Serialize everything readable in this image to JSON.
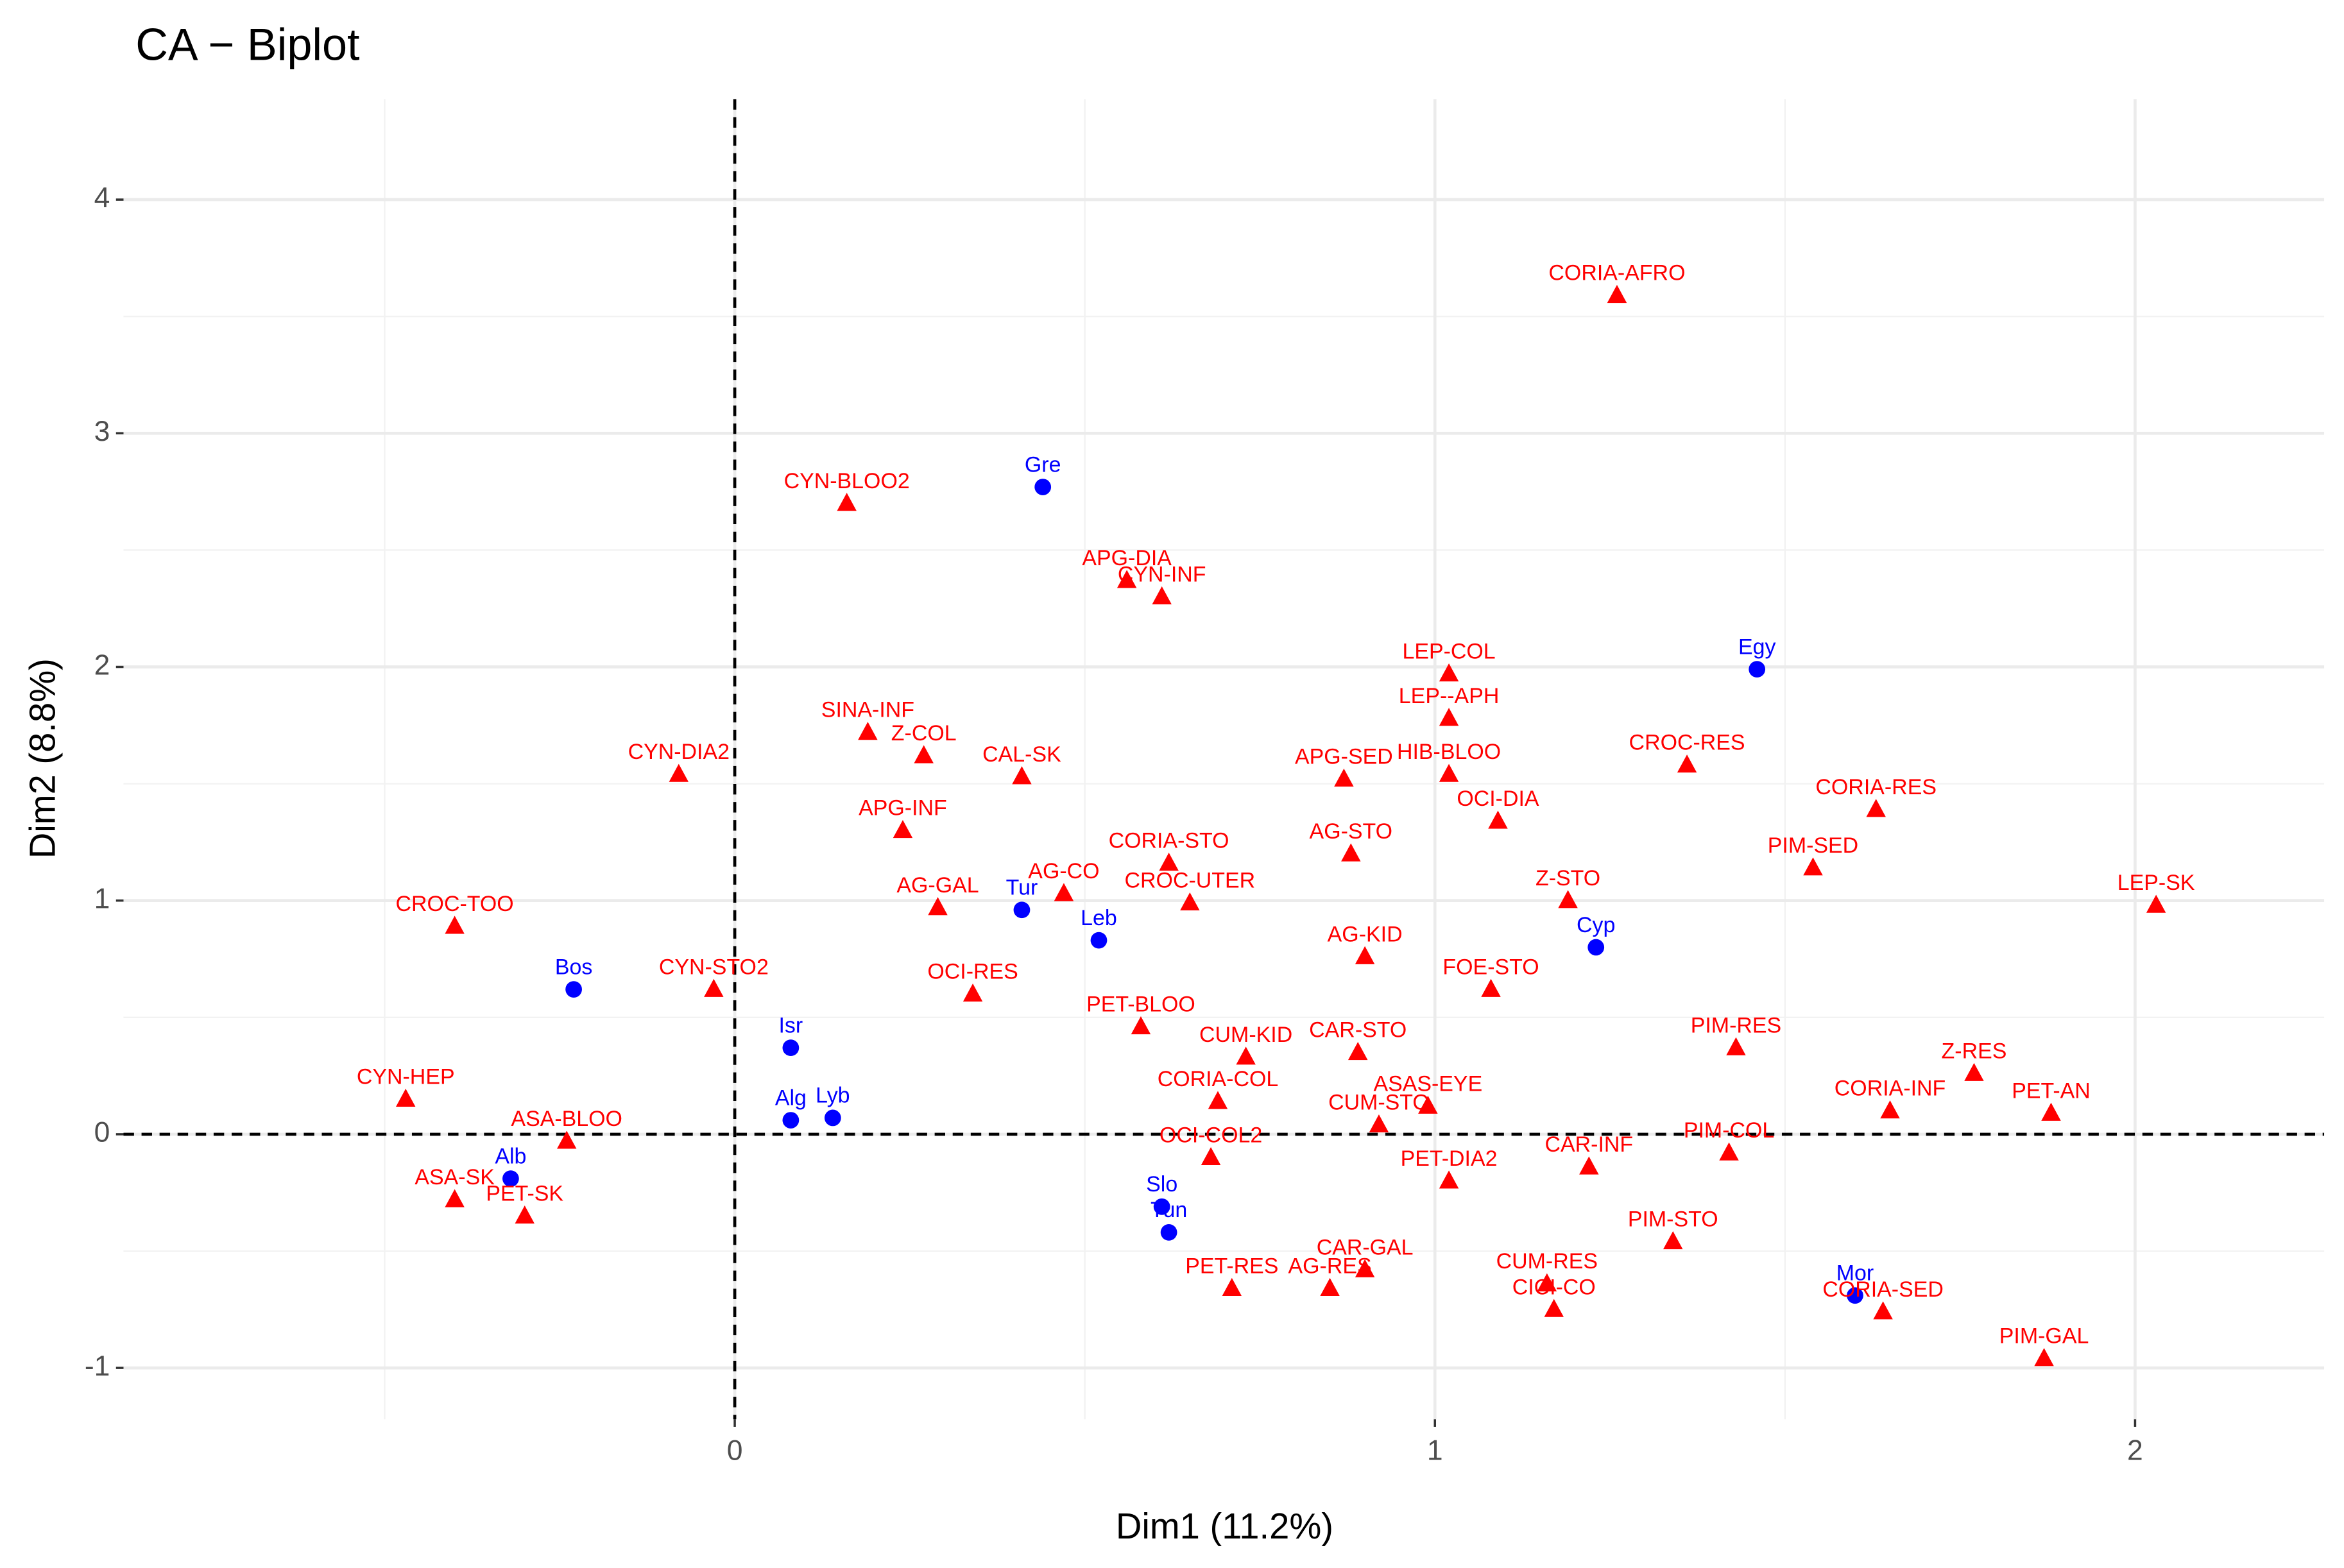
{
  "chart_data": {
    "type": "scatter",
    "title": "CA − Biplot",
    "x_label": "Dim1 (11.2%)",
    "y_label": "Dim2 (8.8%)",
    "xlim": [
      -0.873,
      2.27
    ],
    "ylim": [
      -1.22,
      4.43
    ],
    "xticks": [
      0,
      1,
      2
    ],
    "yticks": [
      -1,
      0,
      1,
      2,
      3,
      4
    ],
    "grid": true,
    "vline": 0,
    "hline": 0,
    "series": [
      {
        "color": "#0000ff",
        "marker": "circle",
        "labels": [
          "Gre",
          "Egy",
          "Tur",
          "Leb",
          "Cyp",
          "Bos",
          "Isr",
          "Alg",
          "Lyb",
          "Alb",
          "Slo",
          "Tun",
          "Mor"
        ],
        "x": [
          0.44,
          1.46,
          0.41,
          0.52,
          1.23,
          -0.23,
          0.08,
          0.08,
          0.14,
          -0.32,
          0.61,
          0.62,
          1.6
        ],
        "values": [
          2.77,
          1.99,
          0.96,
          0.83,
          0.8,
          0.62,
          0.37,
          0.06,
          0.07,
          -0.19,
          -0.31,
          -0.42,
          -0.69
        ]
      },
      {
        "color": "#ff0000",
        "marker": "triangle",
        "labels": [
          "CORIA-AFRO",
          "CYN-BLOO2",
          "APG-DIA",
          "CYN-INF",
          "LEP-COL",
          "LEP--APH",
          "HIB-BLOO",
          "CROC-RES",
          "OCI-DIA",
          "APG-SED",
          "SINA-INF",
          "Z-COL",
          "CAL-SK",
          "CYN-DIA2",
          "APG-INF",
          "AG-STO",
          "CORIA-STO",
          "AG-GAL",
          "AG-CO",
          "Z-STO",
          "PIM-SED",
          "CORIA-RES",
          "CROC-UTER",
          "LEP-SK",
          "CROC-TOO",
          "CYN-STO2",
          "OCI-RES",
          "AG-KID",
          "FOE-STO",
          "PET-BLOO",
          "CUM-KID",
          "CAR-STO",
          "PIM-RES",
          "Z-RES",
          "CORIA-COL",
          "ASAS-EYE",
          "CUM-STO",
          "CORIA-INF",
          "PET-AN",
          "CYN-HEP",
          "ASA-BLOO",
          "OCI-COL2",
          "PIM-COL",
          "CAR-INF",
          "PET-DIA2",
          "ASA-SK",
          "PET-SK",
          "PIM-STO",
          "CAR-GAL",
          "PET-RES",
          "AG-RES",
          "CUM-RES",
          "CICI-CO",
          "CORIA-SED",
          "PIM-GAL"
        ],
        "x": [
          1.26,
          0.16,
          0.56,
          0.61,
          1.02,
          1.02,
          1.02,
          1.36,
          1.09,
          0.87,
          0.19,
          0.27,
          0.41,
          -0.08,
          0.24,
          0.88,
          0.62,
          0.29,
          0.47,
          1.19,
          1.54,
          1.63,
          0.65,
          2.03,
          -0.4,
          -0.03,
          0.34,
          0.9,
          1.08,
          0.58,
          0.73,
          0.89,
          1.43,
          1.77,
          0.69,
          0.99,
          0.92,
          1.65,
          1.88,
          -0.47,
          -0.24,
          0.68,
          1.42,
          1.22,
          1.02,
          -0.4,
          -0.3,
          1.34,
          0.9,
          0.71,
          0.85,
          1.16,
          1.17,
          1.64,
          1.87
        ],
        "values": [
          3.59,
          2.7,
          2.37,
          2.3,
          1.97,
          1.78,
          1.54,
          1.58,
          1.34,
          1.52,
          1.72,
          1.62,
          1.53,
          1.54,
          1.3,
          1.2,
          1.16,
          0.97,
          1.03,
          1.0,
          1.14,
          1.39,
          0.99,
          0.98,
          0.89,
          0.62,
          0.6,
          0.76,
          0.62,
          0.46,
          0.33,
          0.35,
          0.37,
          0.26,
          0.14,
          0.12,
          0.04,
          0.1,
          0.09,
          0.15,
          -0.03,
          -0.1,
          -0.08,
          -0.14,
          -0.2,
          -0.28,
          -0.35,
          -0.46,
          -0.58,
          -0.66,
          -0.66,
          -0.64,
          -0.75,
          -0.76,
          -0.96
        ]
      }
    ]
  }
}
